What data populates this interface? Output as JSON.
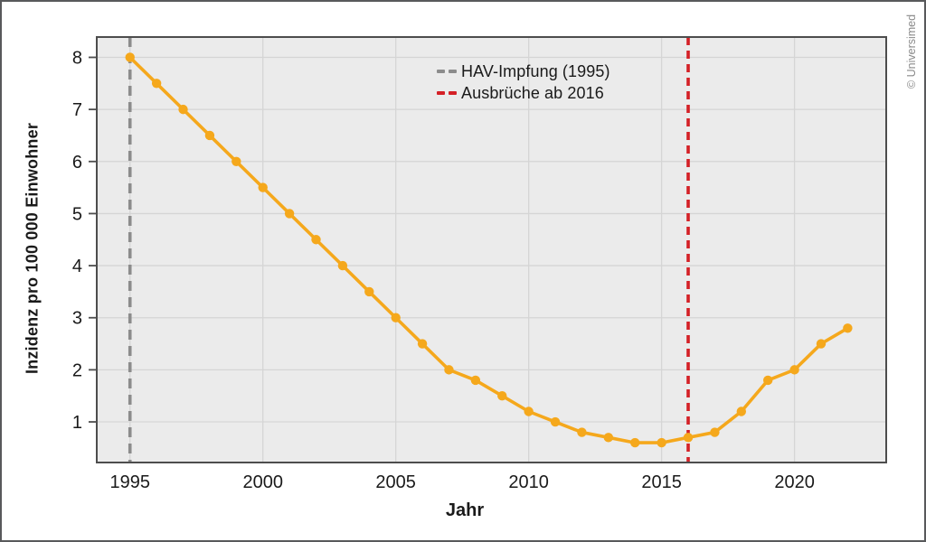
{
  "frame": {
    "copyright": "© Universimed"
  },
  "chart_data": {
    "type": "line",
    "title": "",
    "xlabel": "Jahr",
    "ylabel": "Inzidenz pro 100 000 Einwohner",
    "x": [
      1995,
      1996,
      1997,
      1998,
      1999,
      2000,
      2001,
      2002,
      2003,
      2004,
      2005,
      2006,
      2007,
      2008,
      2009,
      2010,
      2011,
      2012,
      2013,
      2014,
      2015,
      2016,
      2017,
      2018,
      2019,
      2020,
      2021,
      2022
    ],
    "series": [
      {
        "name": "Inzidenz pro 100 000 Einwohner",
        "color": "#F5A81C",
        "values": [
          8.0,
          7.5,
          7.0,
          6.5,
          6.0,
          5.5,
          5.0,
          4.5,
          4.0,
          3.5,
          3.0,
          2.5,
          2.0,
          1.8,
          1.5,
          1.2,
          1.0,
          0.8,
          0.7,
          0.6,
          0.6,
          0.7,
          0.8,
          1.2,
          1.8,
          2.0,
          2.5,
          2.8
        ]
      }
    ],
    "vlines": [
      {
        "x": 1995,
        "label": "HAV-Impfung (1995)",
        "color": "#8C8C8C",
        "dash": [
          11,
          7
        ]
      },
      {
        "x": 2016,
        "label": "Ausbrüche ab 2016",
        "color": "#D42026",
        "dash": [
          9,
          6
        ]
      }
    ],
    "xticks": [
      1995,
      2000,
      2005,
      2010,
      2015,
      2020
    ],
    "yticks": [
      1,
      2,
      3,
      4,
      5,
      6,
      7,
      8
    ],
    "xlim": [
      1993.75,
      2023.45
    ],
    "ylim": [
      0.22,
      8.39
    ],
    "grid": true,
    "grid_color": "#D5D5D5",
    "plot_bg": "#EBEBEB",
    "axis_color": "#4D4D4D",
    "legend_position": "inside-top-center"
  }
}
